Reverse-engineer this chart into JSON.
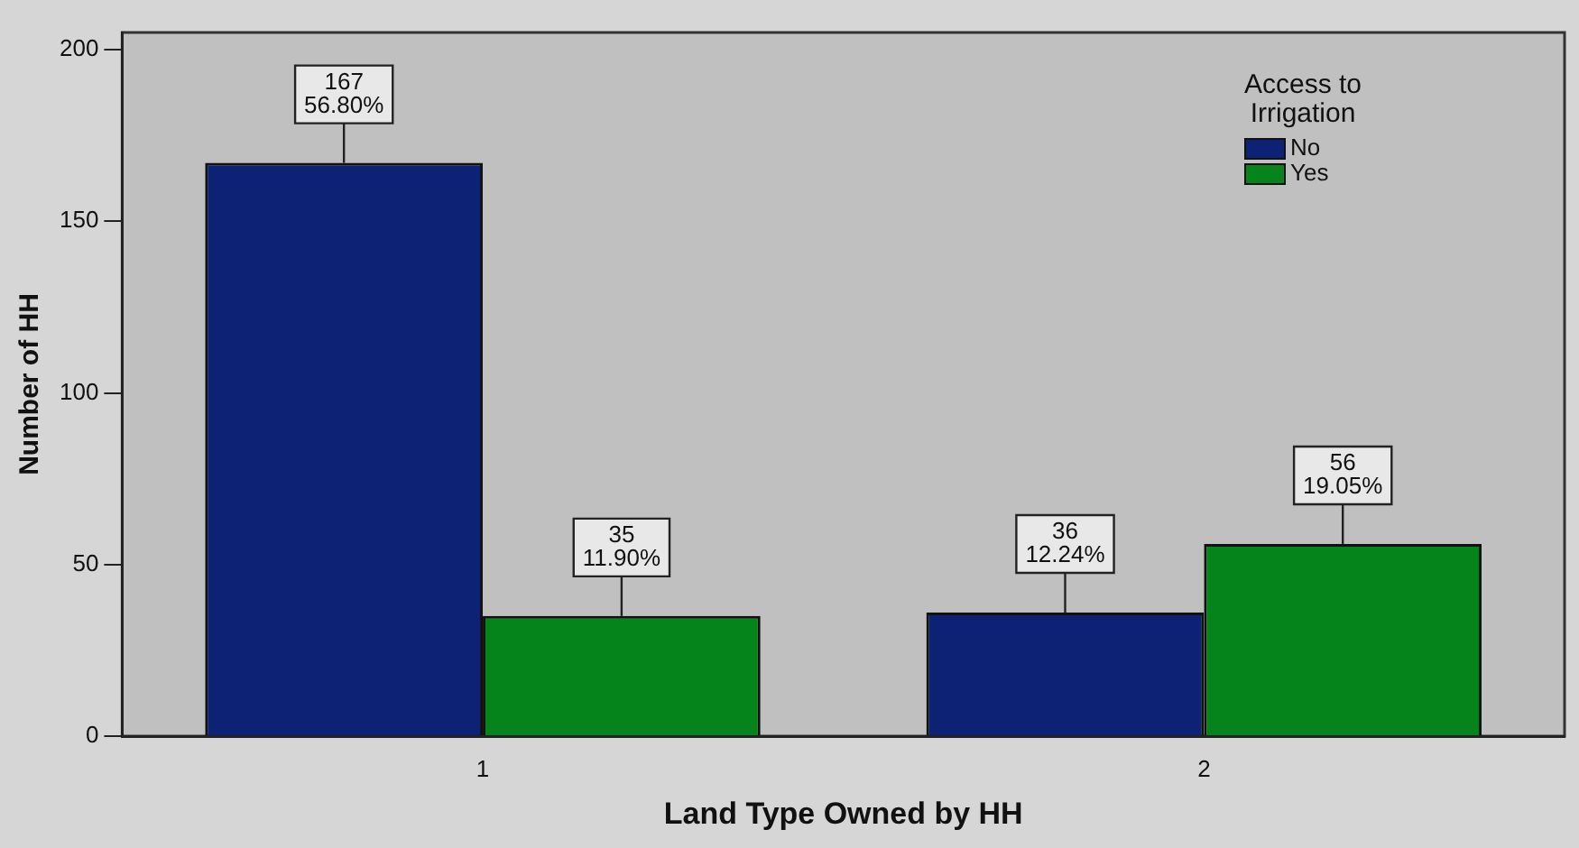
{
  "chart_data": {
    "type": "bar",
    "xlabel": "Land Type Owned by HH",
    "ylabel": "Number of HH",
    "legend_title": "Access to Irrigation",
    "categories": [
      "1",
      "2"
    ],
    "series": [
      {
        "name": "No",
        "color": "#0d2275",
        "values": [
          167,
          36
        ],
        "value_labels": [
          "167\n56.80%",
          "36\n12.24%"
        ]
      },
      {
        "name": "Yes",
        "color": "#04841a",
        "values": [
          35,
          56
        ],
        "value_labels": [
          "35\n11.90%",
          "56\n19.05%"
        ]
      }
    ],
    "ylim": [
      0,
      205
    ],
    "yticks": [
      0,
      50,
      100,
      150,
      200
    ],
    "grid": false,
    "legend": "top right"
  }
}
